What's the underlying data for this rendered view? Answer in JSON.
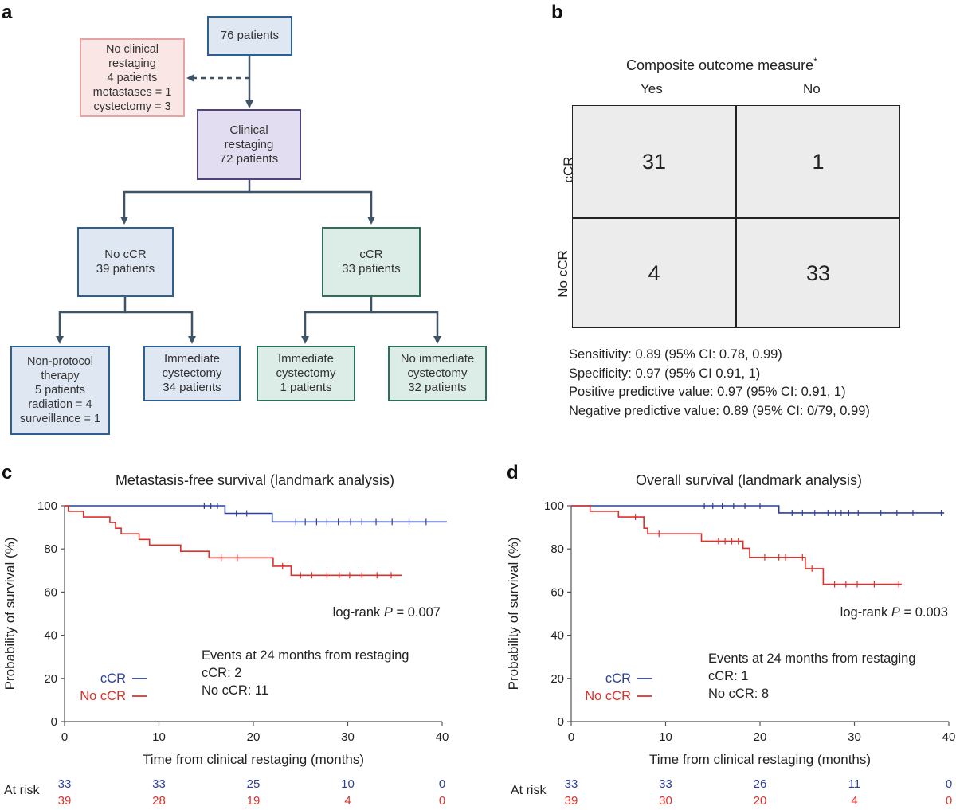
{
  "panels": {
    "a": "a",
    "b": "b",
    "c": "c",
    "d": "d"
  },
  "flow": {
    "start": [
      "76 patients"
    ],
    "excluded": [
      "No clinical",
      "restaging",
      "4 patients",
      "metastases = 1",
      "cystectomy = 3"
    ],
    "restaging": [
      "Clinical",
      "restaging",
      "72 patients"
    ],
    "no_ccr": [
      "No cCR",
      "39 patients"
    ],
    "ccr": [
      "cCR",
      "33 patients"
    ],
    "non_protocol": [
      "Non-protocol",
      "therapy",
      "5 patients",
      "radiation = 4",
      "surveillance = 1"
    ],
    "immediate_cyst_no_ccr": [
      "Immediate",
      "cystectomy",
      "34 patients"
    ],
    "immediate_cyst_ccr": [
      "Immediate",
      "cystectomy",
      "1 patients"
    ],
    "no_immediate_cyst": [
      "No immediate",
      "cystectomy",
      "32 patients"
    ],
    "colors": {
      "blue_fill": "#dfe7f3",
      "blue_border": "#2f5f8f",
      "lilac_fill": "#e2ddf0",
      "lilac_border": "#4f427f",
      "pink_fill": "#fbe6e6",
      "pink_border": "#e6a3a3",
      "green_fill": "#dcece6",
      "green_border": "#2f6f5a",
      "arrow": "#3e5366"
    }
  },
  "confusion": {
    "title": "Composite outcome measure",
    "title_mark": "*",
    "col_yes": "Yes",
    "col_no": "No",
    "row_ccr": "cCR",
    "row_no_ccr": "No cCR",
    "cells": {
      "ccr_yes": "31",
      "ccr_no": "1",
      "noccr_yes": "4",
      "noccr_no": "33"
    },
    "stats": [
      "Sensitivity: 0.89 (95% CI: 0.78, 0.99)",
      "Specificity: 0.97 (95% CI 0.91, 1)",
      "Positive predictive value: 0.97 (95% CI: 0.91, 1)",
      "Negative predictive value: 0.89 (95% CI: 0/79, 0.99)"
    ],
    "cell_fill": "#ececec"
  },
  "chart_data": [
    {
      "type": "line",
      "title": "Metastasis-free survival (landmark analysis)",
      "xlabel": "Time from clinical restaging (months)",
      "ylabel": "Probability of survival (%)",
      "xlim": [
        0,
        40
      ],
      "ylim": [
        0,
        100
      ],
      "xticks": [
        "0",
        "10",
        "20",
        "30",
        "40"
      ],
      "yticks": [
        "0",
        "20",
        "40",
        "60",
        "80",
        "100"
      ],
      "grid": false,
      "legend_placement": "bottom-left",
      "series": [
        {
          "name": "cCR",
          "color": "#2c3f9e",
          "steps": [
            [
              0,
              100
            ],
            [
              17,
              100
            ],
            [
              17,
              96.5
            ],
            [
              22,
              96.5
            ],
            [
              22,
              92.5
            ],
            [
              40.5,
              92.5
            ]
          ],
          "censors": [
            [
              14.8,
              100
            ],
            [
              15.5,
              100
            ],
            [
              16.2,
              100
            ],
            [
              18.2,
              96.5
            ],
            [
              19.3,
              96.5
            ],
            [
              24.5,
              92.5
            ],
            [
              25.5,
              92.5
            ],
            [
              26.7,
              92.5
            ],
            [
              27.8,
              92.5
            ],
            [
              29,
              92.5
            ],
            [
              30.3,
              92.5
            ],
            [
              31.5,
              92.5
            ],
            [
              33,
              92.5
            ],
            [
              34.7,
              92.5
            ],
            [
              36.5,
              92.5
            ],
            [
              38.3,
              92.5
            ]
          ]
        },
        {
          "name": "No cCR",
          "color": "#e0302a",
          "steps": [
            [
              0,
              100
            ],
            [
              0.4,
              100
            ],
            [
              0.4,
              97.4
            ],
            [
              2,
              97.4
            ],
            [
              2,
              94.8
            ],
            [
              4.8,
              94.8
            ],
            [
              4.8,
              92.2
            ],
            [
              5.4,
              92.2
            ],
            [
              5.4,
              89.6
            ],
            [
              6,
              89.6
            ],
            [
              6,
              87
            ],
            [
              7.9,
              87
            ],
            [
              7.9,
              84.4
            ],
            [
              9,
              84.4
            ],
            [
              9,
              81.8
            ],
            [
              12.3,
              81.8
            ],
            [
              12.3,
              78.9
            ],
            [
              15.3,
              78.9
            ],
            [
              15.3,
              75.9
            ],
            [
              22.1,
              75.9
            ],
            [
              22.1,
              72
            ],
            [
              24,
              72
            ],
            [
              24,
              67.8
            ],
            [
              35.7,
              67.8
            ]
          ],
          "censors": [
            [
              16.6,
              75.9
            ],
            [
              18.3,
              75.9
            ],
            [
              23.1,
              72
            ],
            [
              25,
              67.8
            ],
            [
              26.2,
              67.8
            ],
            [
              27.8,
              67.8
            ],
            [
              29.1,
              67.8
            ],
            [
              30.2,
              67.8
            ],
            [
              31.5,
              67.8
            ],
            [
              33.1,
              67.8
            ],
            [
              34.6,
              67.8
            ]
          ]
        }
      ],
      "annotations": {
        "logrank_prefix": "log-rank ",
        "logrank_p": "P",
        "logrank_value": " = 0.007",
        "events_title": "Events at 24 months from restaging",
        "events_ccr": "cCR: 2",
        "events_no_ccr": "No cCR: 11"
      },
      "at_risk": {
        "label": "At risk",
        "times": [
          0,
          10,
          20,
          30,
          40
        ],
        "ccr": [
          "33",
          "33",
          "25",
          "10",
          "0"
        ],
        "no_ccr": [
          "39",
          "28",
          "19",
          "4",
          "0"
        ]
      }
    },
    {
      "type": "line",
      "title": "Overall survival (landmark analysis)",
      "xlabel": "Time from clinical restaging (months)",
      "ylabel": "Probability of survival (%)",
      "xlim": [
        0,
        40
      ],
      "ylim": [
        0,
        100
      ],
      "xticks": [
        "0",
        "10",
        "20",
        "30",
        "40"
      ],
      "yticks": [
        "0",
        "20",
        "40",
        "60",
        "80",
        "100"
      ],
      "grid": false,
      "legend_placement": "bottom-left",
      "series": [
        {
          "name": "cCR",
          "color": "#2c3f9e",
          "steps": [
            [
              0,
              100
            ],
            [
              22,
              100
            ],
            [
              22,
              96.7
            ],
            [
              39.5,
              96.7
            ]
          ],
          "censors": [
            [
              14.1,
              100
            ],
            [
              15,
              100
            ],
            [
              16,
              100
            ],
            [
              17.2,
              100
            ],
            [
              18.4,
              100
            ],
            [
              20,
              100
            ],
            [
              23.4,
              96.7
            ],
            [
              24.5,
              96.7
            ],
            [
              25.8,
              96.7
            ],
            [
              27.2,
              96.7
            ],
            [
              28,
              96.7
            ],
            [
              28.6,
              96.7
            ],
            [
              29.4,
              96.7
            ],
            [
              30.4,
              96.7
            ],
            [
              32.8,
              96.7
            ],
            [
              34.5,
              96.7
            ],
            [
              36.2,
              96.7
            ],
            [
              39.2,
              96.7
            ]
          ]
        },
        {
          "name": "No cCR",
          "color": "#e0302a",
          "steps": [
            [
              0,
              100
            ],
            [
              2,
              100
            ],
            [
              2,
              97.4
            ],
            [
              5,
              97.4
            ],
            [
              5,
              94.8
            ],
            [
              7.7,
              94.8
            ],
            [
              7.7,
              89.6
            ],
            [
              8.1,
              89.6
            ],
            [
              8.1,
              87
            ],
            [
              13.8,
              87
            ],
            [
              13.8,
              83.6
            ],
            [
              18.2,
              83.6
            ],
            [
              18.2,
              80.3
            ],
            [
              18.9,
              80.3
            ],
            [
              18.9,
              76.1
            ],
            [
              24.8,
              76.1
            ],
            [
              24.8,
              70.9
            ],
            [
              26.7,
              70.9
            ],
            [
              26.7,
              63.6
            ],
            [
              35,
              63.6
            ]
          ],
          "censors": [
            [
              6.8,
              94.8
            ],
            [
              9.3,
              87
            ],
            [
              15.6,
              83.6
            ],
            [
              16.3,
              83.6
            ],
            [
              17,
              83.6
            ],
            [
              17.7,
              83.6
            ],
            [
              20.5,
              76.1
            ],
            [
              22,
              76.1
            ],
            [
              22.7,
              76.1
            ],
            [
              24.5,
              76.1
            ],
            [
              25.5,
              70.9
            ],
            [
              27.9,
              63.6
            ],
            [
              29.1,
              63.6
            ],
            [
              30.3,
              63.6
            ],
            [
              32.1,
              63.6
            ],
            [
              34.7,
              63.6
            ]
          ]
        }
      ],
      "annotations": {
        "logrank_prefix": "log-rank ",
        "logrank_p": "P",
        "logrank_value": " = 0.003",
        "events_title": "Events at 24 months from restaging",
        "events_ccr": "cCR: 1",
        "events_no_ccr": "No cCR: 8"
      },
      "at_risk": {
        "label": "At risk",
        "times": [
          0,
          10,
          20,
          30,
          40
        ],
        "ccr": [
          "33",
          "33",
          "26",
          "11",
          "0"
        ],
        "no_ccr": [
          "39",
          "30",
          "20",
          "4",
          "0"
        ]
      }
    }
  ]
}
